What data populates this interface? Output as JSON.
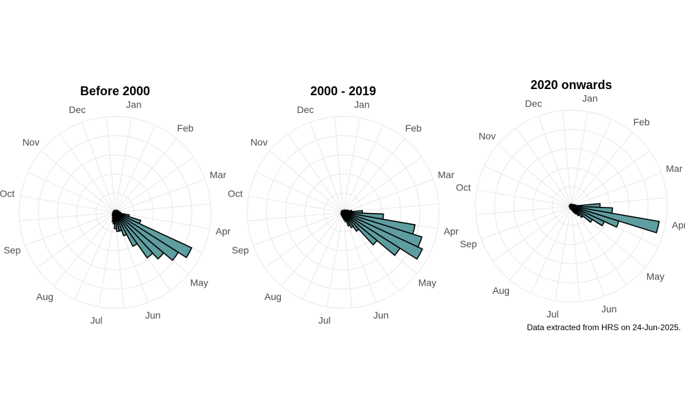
{
  "chart_data": [
    {
      "type": "polar-bar",
      "title": "Before 2000",
      "months": [
        "Jan",
        "Feb",
        "Mar",
        "Apr",
        "May",
        "Jun",
        "Jul",
        "Aug",
        "Sep",
        "Oct",
        "Nov",
        "Dec"
      ],
      "bins_per_month": 4,
      "rmax": 100,
      "values": [
        2,
        2,
        2,
        2,
        2,
        2,
        3,
        3,
        3,
        3,
        4,
        4,
        5,
        6,
        15,
        28,
        88,
        78,
        66,
        58,
        40,
        26,
        20,
        20,
        17,
        12,
        10,
        7,
        5,
        4,
        4,
        3,
        3,
        3,
        2,
        2,
        2,
        2,
        2,
        2,
        2,
        2,
        2,
        2,
        2,
        2,
        2,
        2
      ],
      "colors": {
        "bar_fill": "#5f9ea0",
        "bar_stroke": "#000000",
        "grid": "#ebebeb"
      }
    },
    {
      "type": "polar-bar",
      "title": "2000 - 2019",
      "months": [
        "Jan",
        "Feb",
        "Mar",
        "Apr",
        "May",
        "Jun",
        "Jul",
        "Aug",
        "Sep",
        "Oct",
        "Nov",
        "Dec"
      ],
      "bins_per_month": 4,
      "rmax": 100,
      "values": [
        2,
        2,
        2,
        2,
        2,
        3,
        3,
        3,
        4,
        5,
        6,
        9,
        20,
        42,
        76,
        86,
        91,
        70,
        46,
        24,
        18,
        15,
        10,
        8,
        6,
        5,
        4,
        4,
        3,
        3,
        3,
        3,
        2,
        2,
        2,
        2,
        2,
        2,
        2,
        2,
        2,
        2,
        2,
        2,
        2,
        2,
        2,
        2
      ],
      "colors": {
        "bar_fill": "#5f9ea0",
        "bar_stroke": "#000000",
        "grid": "#ebebeb"
      }
    },
    {
      "type": "polar-bar",
      "title": "2020 onwards",
      "months": [
        "Jan",
        "Feb",
        "Mar",
        "Apr",
        "May",
        "Jun",
        "Jul",
        "Aug",
        "Sep",
        "Oct",
        "Nov",
        "Dec"
      ],
      "bins_per_month": 4,
      "rmax": 100,
      "values": [
        2,
        2,
        2,
        2,
        2,
        2,
        2,
        2,
        3,
        3,
        4,
        5,
        30,
        43,
        93,
        52,
        38,
        26,
        16,
        12,
        9,
        7,
        5,
        4,
        3,
        3,
        3,
        3,
        2,
        2,
        2,
        2,
        2,
        2,
        2,
        2,
        2,
        2,
        2,
        2,
        2,
        2,
        2,
        2,
        2,
        2,
        2,
        2
      ],
      "colors": {
        "bar_fill": "#5f9ea0",
        "bar_stroke": "#000000",
        "grid": "#ebebeb"
      }
    }
  ],
  "caption": "Data extracted from HRS on 24-Jun-2025."
}
